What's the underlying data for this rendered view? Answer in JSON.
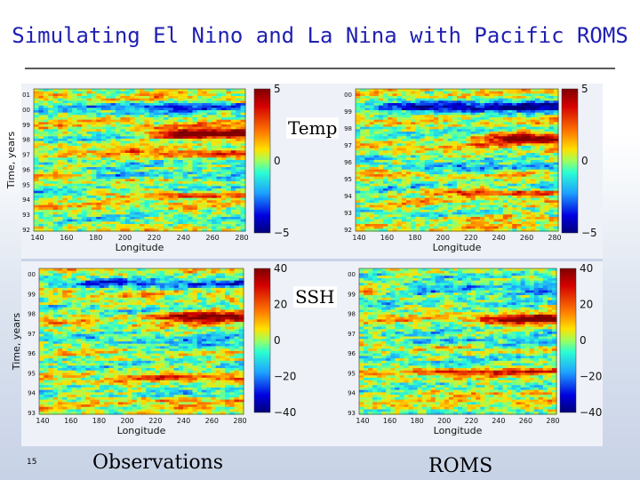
{
  "slide": {
    "title": "Simulating El Nino and La Nina with Pacific ROMS",
    "page_number": "15",
    "label_temp": "Temp",
    "label_ssh": "SSH",
    "label_obs": "Observations",
    "label_roms": "ROMS"
  },
  "chart_data": [
    {
      "id": "temp-observations",
      "type": "heatmap",
      "title": "",
      "xlabel": "Longitude",
      "ylabel": "Time, years",
      "x_ticks": [
        "140",
        "160",
        "180",
        "200",
        "220",
        "240",
        "260",
        "280"
      ],
      "y_ticks": [
        "01",
        "00",
        "99",
        "98",
        "97",
        "96",
        "95",
        "94",
        "93",
        "92"
      ],
      "colorbar_ticks": [
        "5",
        "0",
        "−5"
      ],
      "clim": [
        -5,
        5
      ]
    },
    {
      "id": "temp-roms",
      "type": "heatmap",
      "title": "",
      "xlabel": "Longitude",
      "ylabel": "",
      "x_ticks": [
        "140",
        "160",
        "180",
        "200",
        "220",
        "240",
        "260",
        "280"
      ],
      "y_ticks": [
        "00",
        "99",
        "98",
        "97",
        "96",
        "95",
        "94",
        "93",
        "92"
      ],
      "colorbar_ticks": [
        "5",
        "0",
        "−5"
      ],
      "clim": [
        -5,
        5
      ]
    },
    {
      "id": "ssh-observations",
      "type": "heatmap",
      "title": "",
      "xlabel": "Longitude",
      "ylabel": "Time, years",
      "x_ticks": [
        "140",
        "160",
        "180",
        "200",
        "220",
        "240",
        "260",
        "280"
      ],
      "y_ticks": [
        "00",
        "99",
        "98",
        "97",
        "96",
        "95",
        "94",
        "93"
      ],
      "colorbar_ticks": [
        "40",
        "20",
        "0",
        "−20",
        "−40"
      ],
      "clim": [
        -40,
        40
      ]
    },
    {
      "id": "ssh-roms",
      "type": "heatmap",
      "title": "",
      "xlabel": "Longitude",
      "ylabel": "",
      "x_ticks": [
        "140",
        "160",
        "180",
        "200",
        "220",
        "240",
        "260",
        "280"
      ],
      "y_ticks": [
        "00",
        "99",
        "98",
        "97",
        "96",
        "95",
        "94",
        "93"
      ],
      "colorbar_ticks": [
        "40",
        "20",
        "0",
        "−20",
        "−40"
      ],
      "clim": [
        -40,
        40
      ]
    }
  ]
}
